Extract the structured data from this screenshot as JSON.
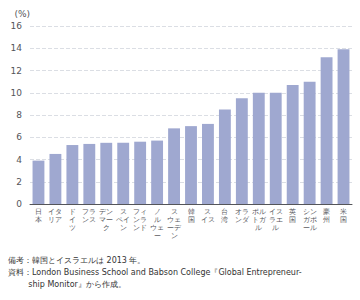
{
  "chart_data": {
    "type": "bar",
    "categories": [
      "日\n本",
      "イタ\nリア",
      "ド\nイ\nツ",
      "フラ\nンス",
      "デン\nマー\nク",
      "ス\nペイ\nン",
      "フィ\nンラ\nンド",
      "ノ\nル\nウェ\nー",
      "ス\nウェ\nーデ\nン",
      "韓\n国",
      "ス\nイス",
      "台\n湾",
      "オラ\nンダ",
      "ポル\nトガ\nル",
      "イス\nラエ\nル",
      "英\n国",
      "シン\nガポ\nール",
      "豪\n州",
      "米\n国"
    ],
    "values": [
      3.9,
      4.5,
      5.3,
      5.4,
      5.5,
      5.5,
      5.6,
      5.7,
      6.8,
      7.0,
      7.2,
      8.5,
      9.5,
      10.0,
      10.0,
      10.7,
      11.0,
      13.2,
      13.9
    ],
    "color": "#9fa8d0",
    "ylabel": "(%)",
    "ylim": [
      0,
      16
    ],
    "yticks": [
      0,
      2,
      4,
      6,
      8,
      10,
      12,
      14,
      16
    ],
    "grid": true,
    "annotations": [
      "備考：韓国とイスラエルは 2013 年。",
      "資料：London Business School and Babson College『Global Entrepreneur-",
      "        ship Monitor』から作成。"
    ]
  }
}
